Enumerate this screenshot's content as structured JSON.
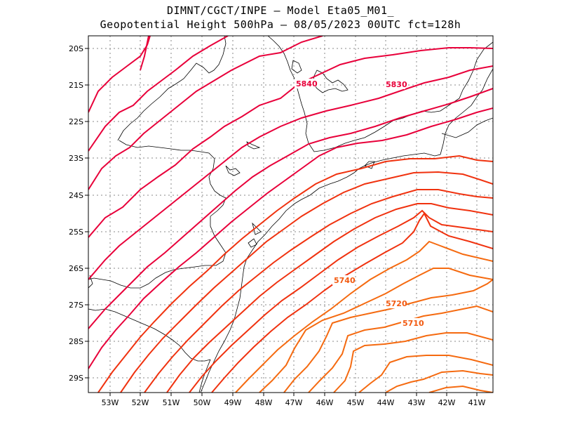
{
  "title": {
    "line1": "DIMNT/CGCT/INPE –  Model Eta05_M01_",
    "line2": "Geopotential Height 500hPa –  08/05/2023 00UTC fct=128h"
  },
  "axes": {
    "lon_labels": [
      "53W",
      "52W",
      "51W",
      "50W",
      "49W",
      "48W",
      "47W",
      "46W",
      "45W",
      "44W",
      "43W",
      "42W",
      "41W"
    ],
    "lat_labels": [
      "20S",
      "21S",
      "22S",
      "23S",
      "24S",
      "25S",
      "26S",
      "27S",
      "28S",
      "29S"
    ],
    "lon_range": [
      -53.6,
      -40.5
    ],
    "lat_range": [
      -29.4,
      -19.6
    ]
  },
  "contour_labels": [
    {
      "text": "5840",
      "color": "#e8003a"
    },
    {
      "text": "5830",
      "color": "#e8003a"
    },
    {
      "text": "5740",
      "color": "#f25a10"
    },
    {
      "text": "5720",
      "color": "#f25a10"
    },
    {
      "text": "5710",
      "color": "#f25a10"
    }
  ],
  "colors": {
    "high_contours": "#e8003a",
    "mid_contours": "#f0320f",
    "low_contours": "#f56a10",
    "grid": "#888888",
    "coast": "#000000"
  }
}
